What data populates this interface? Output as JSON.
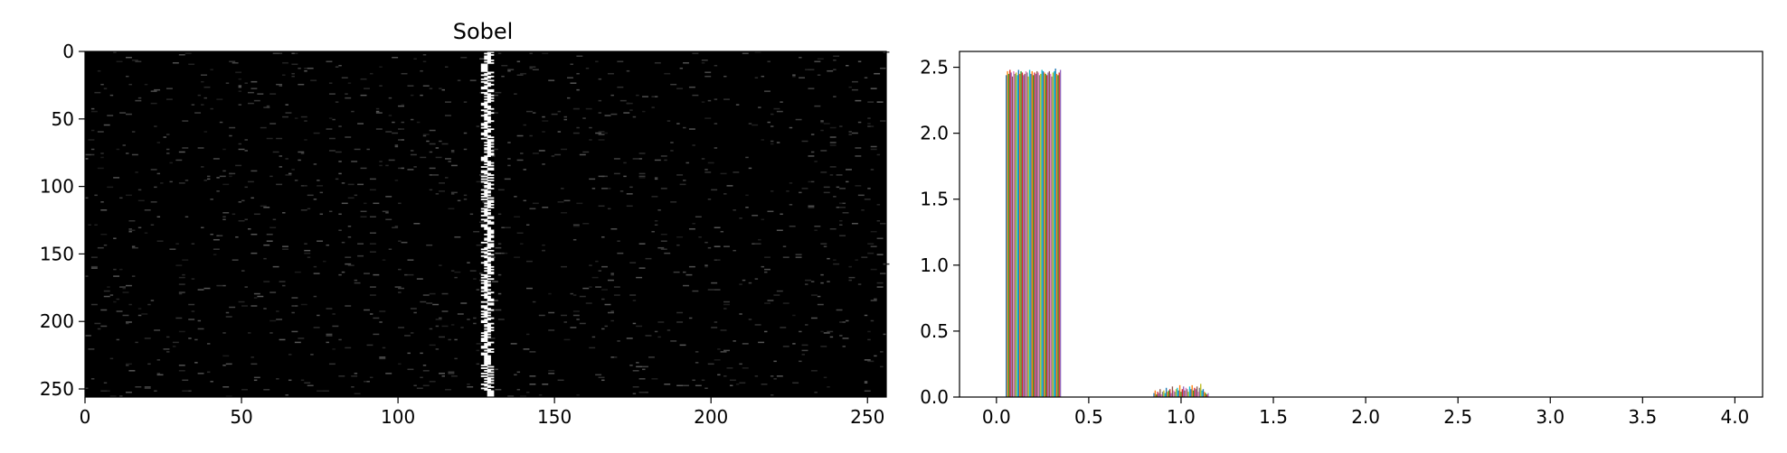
{
  "figure": {
    "background": "#ffffff"
  },
  "chart_data": [
    {
      "type": "heatmap",
      "title": "Sobel",
      "xlabel": "",
      "ylabel": "",
      "xlim": [
        0,
        256
      ],
      "ylim": [
        256,
        0
      ],
      "x_ticks": [
        0,
        50,
        100,
        150,
        200,
        250
      ],
      "y_ticks": [
        0,
        50,
        100,
        150,
        200,
        250
      ],
      "x_tick_labels": [
        "0",
        "50",
        "100",
        "150",
        "200",
        "250"
      ],
      "y_tick_labels": [
        "0",
        "50",
        "100",
        "150",
        "200",
        "250"
      ],
      "colormap": "gray",
      "background_value": 0,
      "bright_column_x": 128,
      "bright_column_wobble": [
        127,
        129
      ],
      "bright_column_value": 1.0,
      "speckle_fraction": 0.08,
      "speckle_value_range": [
        0.1,
        0.35
      ]
    },
    {
      "type": "bar",
      "title": "",
      "xlabel": "",
      "ylabel": "",
      "xlim": [
        -0.2,
        4.15
      ],
      "ylim": [
        0,
        2.62
      ],
      "x_ticks": [
        0.0,
        0.5,
        1.0,
        1.5,
        2.0,
        2.5,
        3.0,
        3.5,
        4.0
      ],
      "y_ticks": [
        0.0,
        0.5,
        1.0,
        1.5,
        2.0,
        2.5
      ],
      "x_tick_labels": [
        "0.0",
        "0.5",
        "1.0",
        "1.5",
        "2.0",
        "2.5",
        "3.0",
        "3.5",
        "4.0"
      ],
      "y_tick_labels": [
        "0.0",
        "0.5",
        "1.0",
        "1.5",
        "2.0",
        "2.5"
      ],
      "grid": false,
      "legend": "none",
      "colors": [
        "#1f77b4",
        "#ff7f0e",
        "#2ca02c",
        "#d62728",
        "#9467bd",
        "#8c564b",
        "#e377c2",
        "#7f7f7f",
        "#bcbd22",
        "#17becf"
      ],
      "groups": [
        {
          "x_start": 0.05,
          "x_end": 0.35,
          "values": [
            2.44,
            2.47,
            2.45,
            2.48,
            2.46,
            2.43,
            2.47,
            2.45,
            2.46,
            2.44,
            2.48,
            2.45,
            2.47,
            2.46,
            2.44,
            2.45,
            2.47,
            2.46,
            2.43,
            2.48,
            2.45,
            2.47,
            2.44,
            2.46,
            2.45,
            2.47,
            2.46,
            2.44,
            2.45,
            2.48,
            2.47,
            2.46,
            2.45,
            2.44,
            2.46,
            2.47,
            2.45,
            2.43,
            2.46,
            2.47,
            2.49,
            2.45,
            2.44,
            2.46,
            2.48
          ]
        },
        {
          "x_start": 0.85,
          "x_end": 1.15,
          "values": [
            0.03,
            0.05,
            0.02,
            0.04,
            0.03,
            0.06,
            0.02,
            0.04,
            0.05,
            0.03,
            0.07,
            0.04,
            0.05,
            0.06,
            0.03,
            0.08,
            0.05,
            0.04,
            0.06,
            0.07,
            0.05,
            0.09,
            0.04,
            0.06,
            0.08,
            0.05,
            0.07,
            0.06,
            0.04,
            0.08,
            0.06,
            0.09,
            0.05,
            0.07,
            0.06,
            0.08,
            0.04,
            0.07,
            0.1,
            0.05,
            0.06,
            0.04,
            0.03,
            0.02,
            0.03
          ]
        }
      ]
    }
  ]
}
